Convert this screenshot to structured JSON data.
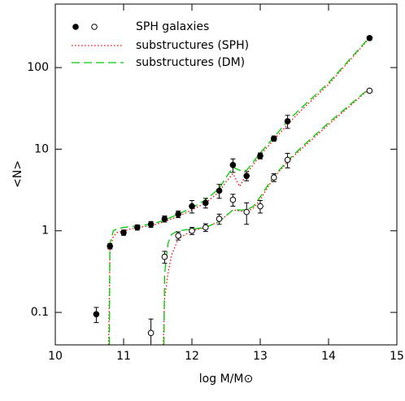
{
  "chart_data": {
    "type": "scatter",
    "x_label": "log M/M⊙",
    "y_label": "<N>",
    "xlim": [
      10,
      15
    ],
    "ylim": [
      0.04,
      600
    ],
    "xticks": [
      10,
      11,
      12,
      13,
      14,
      15
    ],
    "yticks": [
      0.1,
      1,
      10,
      100
    ],
    "log_y": true,
    "galaxies": {
      "name": "SPH galaxies",
      "color": "#000000",
      "groups": [
        {
          "filled": true,
          "x": [
            10.6,
            10.8,
            11.0,
            11.2,
            11.4,
            11.6,
            11.8,
            12.0,
            12.2,
            12.4,
            12.6,
            12.8,
            13.0,
            13.2,
            13.4,
            14.6
          ],
          "values": [
            0.095,
            0.65,
            0.95,
            1.1,
            1.2,
            1.4,
            1.6,
            2.0,
            2.2,
            3.1,
            6.4,
            4.7,
            8.3,
            13.5,
            22,
            230
          ],
          "errors": [
            0.02,
            0.05,
            0.07,
            0.08,
            0.1,
            0.12,
            0.15,
            0.35,
            0.3,
            0.6,
            1.2,
            0.6,
            0.7,
            1.0,
            4,
            12
          ]
        },
        {
          "filled": false,
          "x": [
            11.4,
            11.6,
            11.8,
            12.0,
            12.2,
            12.4,
            12.6,
            12.8,
            13.0,
            13.2,
            13.4,
            14.6
          ],
          "values": [
            0.056,
            0.48,
            0.87,
            1.0,
            1.1,
            1.4,
            2.4,
            1.7,
            2.0,
            4.5,
            7.4,
            52
          ],
          "errors": [
            0.027,
            0.08,
            0.1,
            0.1,
            0.12,
            0.2,
            0.4,
            0.5,
            0.35,
            0.5,
            1.5,
            2
          ]
        }
      ]
    },
    "series": [
      {
        "name": "substructures (SPH)",
        "color": "#ff0000",
        "dash": "dotted",
        "lines": [
          {
            "x": [
              10.78,
              10.8,
              10.85,
              10.9,
              11.0,
              11.2,
              11.4,
              11.6,
              11.8,
              12.0,
              12.2,
              12.4,
              12.5,
              12.6,
              12.7,
              12.8,
              12.9,
              13.0,
              13.2,
              13.4,
              13.6,
              14.0,
              14.6
            ],
            "values": [
              0.04,
              0.6,
              0.85,
              0.95,
              1.0,
              1.1,
              1.15,
              1.3,
              1.5,
              1.8,
              2.2,
              3.0,
              4.0,
              5.0,
              3.5,
              5.0,
              6.5,
              8.5,
              13,
              20,
              30,
              62,
              230
            ]
          },
          {
            "x": [
              11.58,
              11.6,
              11.65,
              11.7,
              11.8,
              12.0,
              12.2,
              12.4,
              12.6,
              12.8,
              12.9,
              13.0,
              13.2,
              13.4,
              13.6,
              14.0,
              14.6
            ],
            "values": [
              0.04,
              0.15,
              0.3,
              0.5,
              0.8,
              1.0,
              1.1,
              1.3,
              1.8,
              1.7,
              1.9,
              2.4,
              4.5,
              7,
              10,
              20,
              55
            ]
          }
        ]
      },
      {
        "name": "substructures (DM)",
        "color": "#00cc00",
        "dash": "dashed",
        "lines": [
          {
            "x": [
              10.79,
              10.8,
              10.85,
              10.9,
              11.0,
              11.2,
              11.4,
              11.6,
              11.8,
              12.0,
              12.2,
              12.4,
              12.5,
              12.6,
              12.7,
              12.8,
              12.9,
              13.0,
              13.2,
              13.4,
              13.6,
              14.0,
              14.6
            ],
            "values": [
              0.04,
              0.7,
              1.0,
              1.05,
              1.1,
              1.15,
              1.2,
              1.35,
              1.6,
              1.9,
              2.4,
              3.3,
              4.5,
              6.0,
              5.5,
              5.5,
              7,
              9,
              14,
              22,
              32,
              65,
              235
            ]
          },
          {
            "x": [
              11.59,
              11.6,
              11.65,
              11.7,
              11.8,
              12.0,
              12.2,
              12.4,
              12.6,
              12.8,
              12.9,
              13.0,
              13.2,
              13.4,
              13.6,
              14.0,
              14.6
            ],
            "values": [
              0.04,
              0.3,
              0.7,
              0.9,
              1.0,
              1.05,
              1.1,
              1.3,
              1.8,
              1.8,
              2.0,
              2.6,
              4.7,
              7.2,
              10.5,
              21,
              56
            ]
          }
        ]
      }
    ]
  }
}
